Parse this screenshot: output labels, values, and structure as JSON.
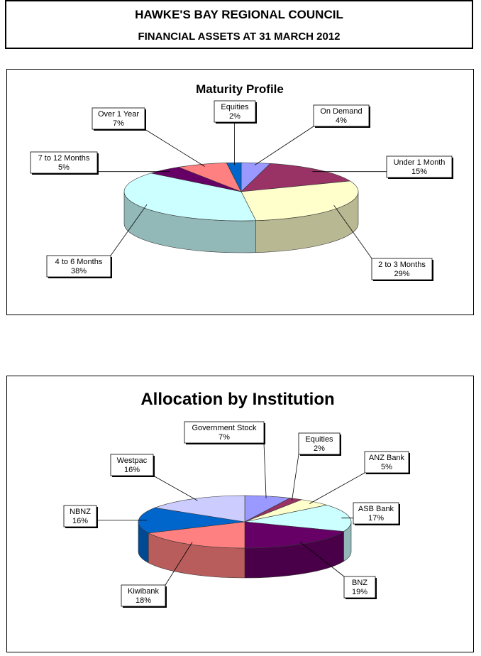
{
  "header": {
    "line1": "HAWKE'S BAY REGIONAL COUNCIL",
    "line2": "FINANCIAL ASSETS AT 31 MARCH 2012"
  },
  "chart_data": [
    {
      "type": "pie",
      "title": "Maturity Profile",
      "categories": [
        "On Demand",
        "Under 1 Month",
        "2 to 3 Months",
        "4 to 6 Months",
        "7 to 12 Months",
        "Over 1 Year",
        "Equities"
      ],
      "values": [
        4,
        15,
        29,
        38,
        5,
        7,
        2
      ],
      "value_labels": [
        "4%",
        "15%",
        "29%",
        "38%",
        "5%",
        "7%",
        "2%"
      ],
      "colors": [
        "#9999FF",
        "#993366",
        "#FFFFCC",
        "#CCFFFF",
        "#660066",
        "#FF8080",
        "#0066CC"
      ],
      "legend": "none"
    },
    {
      "type": "pie",
      "title": "Allocation by Institution",
      "categories": [
        "Government Stock",
        "Equities",
        "ANZ Bank",
        "ASB Bank",
        "BNZ",
        "Kiwibank",
        "NBNZ",
        "Westpac"
      ],
      "values": [
        7,
        2,
        5,
        17,
        19,
        18,
        16,
        16
      ],
      "value_labels": [
        "7%",
        "2%",
        "5%",
        "17%",
        "19%",
        "18%",
        "16%",
        "16%"
      ],
      "colors": [
        "#9999FF",
        "#993366",
        "#FFFFCC",
        "#CCFFFF",
        "#660066",
        "#FF8080",
        "#0066CC",
        "#CCCCFF"
      ],
      "legend": "none"
    }
  ]
}
